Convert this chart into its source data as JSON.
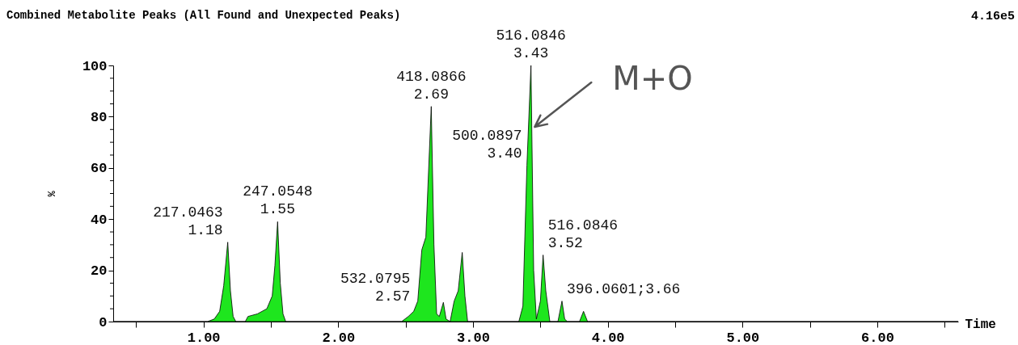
{
  "chart_data": {
    "type": "area",
    "title": "Combined Metabolite Peaks (All Found and Unexpected Peaks)",
    "xlabel": "Time",
    "ylabel": "%",
    "color": "#1ee61e",
    "x": [
      0.33,
      1.03,
      1.08,
      1.12,
      1.15,
      1.18,
      1.2,
      1.22,
      1.24,
      1.31,
      1.33,
      1.4,
      1.47,
      1.51,
      1.53,
      1.55,
      1.57,
      1.59,
      1.61,
      2.47,
      2.52,
      2.56,
      2.59,
      2.62,
      2.65,
      2.69,
      2.71,
      2.73,
      2.75,
      2.78,
      2.8,
      2.83,
      2.86,
      2.89,
      2.92,
      2.94,
      2.96,
      3.34,
      3.37,
      3.4,
      3.43,
      3.45,
      3.47,
      3.5,
      3.52,
      3.54,
      3.57,
      3.63,
      3.66,
      3.68,
      3.7,
      3.79,
      3.82,
      3.85,
      6.6
    ],
    "values": [
      0,
      0,
      1,
      4,
      14,
      31,
      12,
      2,
      0,
      0,
      2,
      3,
      5,
      10,
      22,
      39,
      15,
      3,
      0,
      0,
      2,
      4,
      8,
      28,
      33,
      84,
      30,
      3,
      2,
      7.5,
      1,
      0,
      8,
      12,
      27,
      10,
      0,
      0,
      6,
      61,
      100,
      20,
      1,
      8,
      26,
      12,
      0,
      0,
      8,
      1,
      0,
      0,
      4,
      0,
      0
    ],
    "xlim": [
      0.33,
      6.6
    ],
    "xticks": [
      {
        "value": 0.5,
        "label": null
      },
      {
        "value": 1,
        "label": "1.00"
      },
      {
        "value": 1.5,
        "label": null
      },
      {
        "value": 2,
        "label": "2.00"
      },
      {
        "value": 2.5,
        "label": null
      },
      {
        "value": 3,
        "label": "3.00"
      },
      {
        "value": 3.5,
        "label": null
      },
      {
        "value": 4,
        "label": "4.00"
      },
      {
        "value": 4.5,
        "label": null
      },
      {
        "value": 5,
        "label": "5.00"
      },
      {
        "value": 5.5,
        "label": null
      },
      {
        "value": 6,
        "label": "6.00"
      },
      {
        "value": 6.5,
        "label": null
      }
    ],
    "ylim": [
      0,
      100
    ],
    "yticks": [
      0,
      {
        "value": 5,
        "label": null
      },
      {
        "value": 10,
        "label": null
      },
      {
        "value": 15,
        "label": null
      },
      20,
      {
        "value": 25,
        "label": null
      },
      {
        "value": 30,
        "label": null
      },
      {
        "value": 35,
        "label": null
      },
      40,
      {
        "value": 45,
        "label": null
      },
      {
        "value": 50,
        "label": null
      },
      {
        "value": 55,
        "label": null
      },
      60,
      {
        "value": 65,
        "label": null
      },
      {
        "value": 70,
        "label": null
      },
      {
        "value": 75,
        "label": null
      },
      80,
      {
        "value": 85,
        "label": null
      },
      {
        "value": 90,
        "label": null
      },
      {
        "value": 95,
        "label": null
      },
      100
    ],
    "annotations": [
      "4.16e5",
      {
        "text": "217.0463\n1.18",
        "x": 1.18,
        "y": 31
      },
      {
        "text": "247.0548\n1.55",
        "x": 1.55,
        "y": 39
      },
      {
        "text": "532.0795\n2.57",
        "x": 2.57,
        "y": 5
      },
      {
        "text": "418.0866\n2.69",
        "x": 2.69,
        "y": 84
      },
      {
        "text": "500.0897\n3.40",
        "x": 3.4,
        "y": 61
      },
      {
        "text": "516.0846\n3.43",
        "x": 3.43,
        "y": 100
      },
      {
        "text": "516.0846\n3.52",
        "x": 3.52,
        "y": 26
      },
      {
        "text": "396.0601;3.66",
        "x": 3.66,
        "y": 8
      },
      {
        "text": "M+O",
        "x": 3.44,
        "y": 76
      }
    ]
  }
}
